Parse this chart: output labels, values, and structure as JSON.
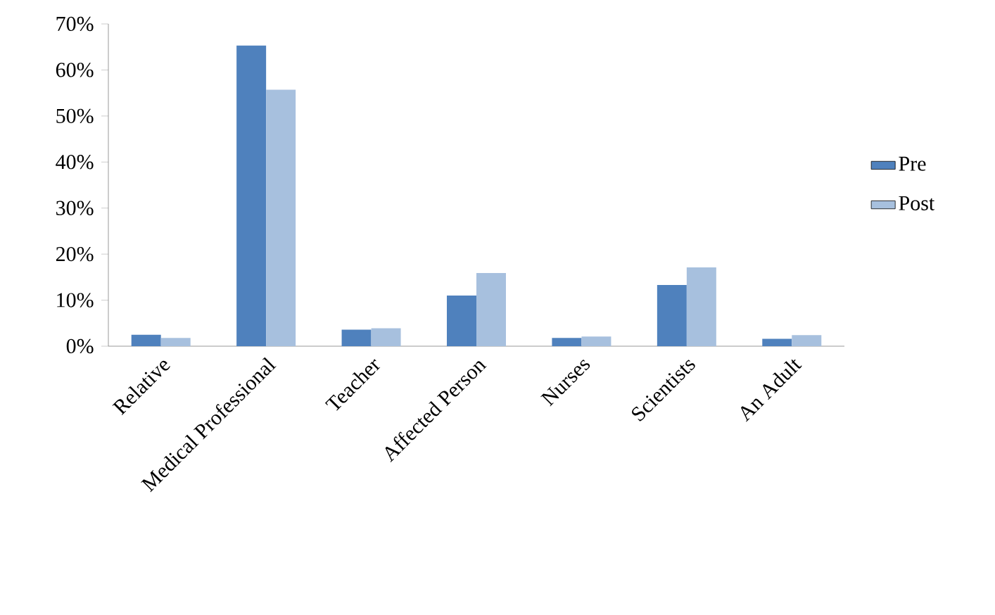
{
  "chart_data": {
    "type": "bar",
    "categories": [
      "Relative",
      "Medical Professional",
      "Teacher",
      "Affected Person",
      "Nurses",
      "Scientists",
      "An Adult"
    ],
    "series": [
      {
        "name": "Pre",
        "color": "#4f81bd",
        "values": [
          2.5,
          65.3,
          3.6,
          11.0,
          1.8,
          13.3,
          1.6
        ]
      },
      {
        "name": "Post",
        "color": "#a7c0de",
        "values": [
          1.8,
          55.7,
          3.9,
          15.9,
          2.1,
          17.1,
          2.4
        ]
      }
    ],
    "ylim": [
      0,
      70
    ],
    "yticks": [
      {
        "value": 0,
        "label": "0%"
      },
      {
        "value": 10,
        "label": "10%"
      },
      {
        "value": 20,
        "label": "20%"
      },
      {
        "value": 30,
        "label": "30%"
      },
      {
        "value": 40,
        "label": "40%"
      },
      {
        "value": 50,
        "label": "50%"
      },
      {
        "value": 60,
        "label": "60%"
      },
      {
        "value": 70,
        "label": "70%"
      }
    ],
    "legend": "right"
  }
}
